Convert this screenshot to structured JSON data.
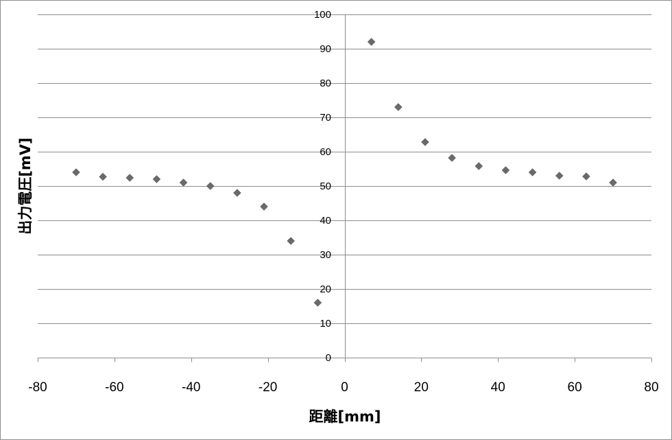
{
  "chart_data": {
    "type": "scatter",
    "xlabel": "距離[mm]",
    "ylabel": "出力電圧[mV]",
    "xlim": [
      -80,
      80
    ],
    "ylim": [
      0,
      100
    ],
    "x_ticks": [
      -80,
      -60,
      -40,
      -20,
      0,
      20,
      40,
      60,
      80
    ],
    "y_ticks": [
      0,
      10,
      20,
      30,
      40,
      50,
      60,
      70,
      80,
      90,
      100
    ],
    "grid": "horizontal",
    "marker": "diamond",
    "marker_color": "#6a6a6a",
    "series": [
      {
        "points": [
          {
            "x": -70,
            "y": 54
          },
          {
            "x": -63,
            "y": 52.7
          },
          {
            "x": -56,
            "y": 52.4
          },
          {
            "x": -49,
            "y": 52
          },
          {
            "x": -42,
            "y": 51
          },
          {
            "x": -35,
            "y": 50
          },
          {
            "x": -28,
            "y": 48
          },
          {
            "x": -21,
            "y": 44
          },
          {
            "x": -14,
            "y": 34
          },
          {
            "x": -7,
            "y": 16
          },
          {
            "x": 7,
            "y": 92
          },
          {
            "x": 14,
            "y": 73
          },
          {
            "x": 21,
            "y": 62.8
          },
          {
            "x": 28,
            "y": 58.2
          },
          {
            "x": 35,
            "y": 55.8
          },
          {
            "x": 42,
            "y": 54.6
          },
          {
            "x": 49,
            "y": 54
          },
          {
            "x": 56,
            "y": 53
          },
          {
            "x": 63,
            "y": 52.8
          },
          {
            "x": 70,
            "y": 51
          }
        ]
      }
    ]
  }
}
